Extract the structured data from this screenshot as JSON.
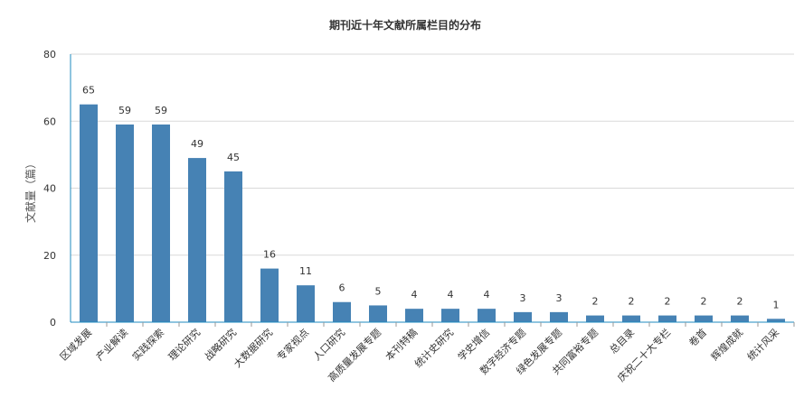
{
  "chart_data": {
    "type": "bar",
    "title": "期刊近十年文献所属栏目的分布",
    "xlabel": "",
    "ylabel": "文献量（篇）",
    "ylim": [
      0,
      80
    ],
    "yticks": [
      0,
      20,
      40,
      60,
      80
    ],
    "grid": true,
    "bar_color": "#4682b4",
    "categories": [
      "区域发展",
      "产业解读",
      "实践探索",
      "理论研究",
      "战略研究",
      "大数据研究",
      "专家视点",
      "人口研究",
      "高质量发展专题",
      "本刊特稿",
      "统计史研究",
      "学史增信",
      "数字经济专题",
      "绿色发展专题",
      "共同富裕专题",
      "总目录",
      "庆祝二十大专栏",
      "卷首",
      "辉煌成就",
      "统计风采"
    ],
    "values": [
      65,
      59,
      59,
      49,
      45,
      16,
      11,
      6,
      5,
      4,
      4,
      4,
      3,
      3,
      2,
      2,
      2,
      2,
      2,
      1
    ]
  }
}
